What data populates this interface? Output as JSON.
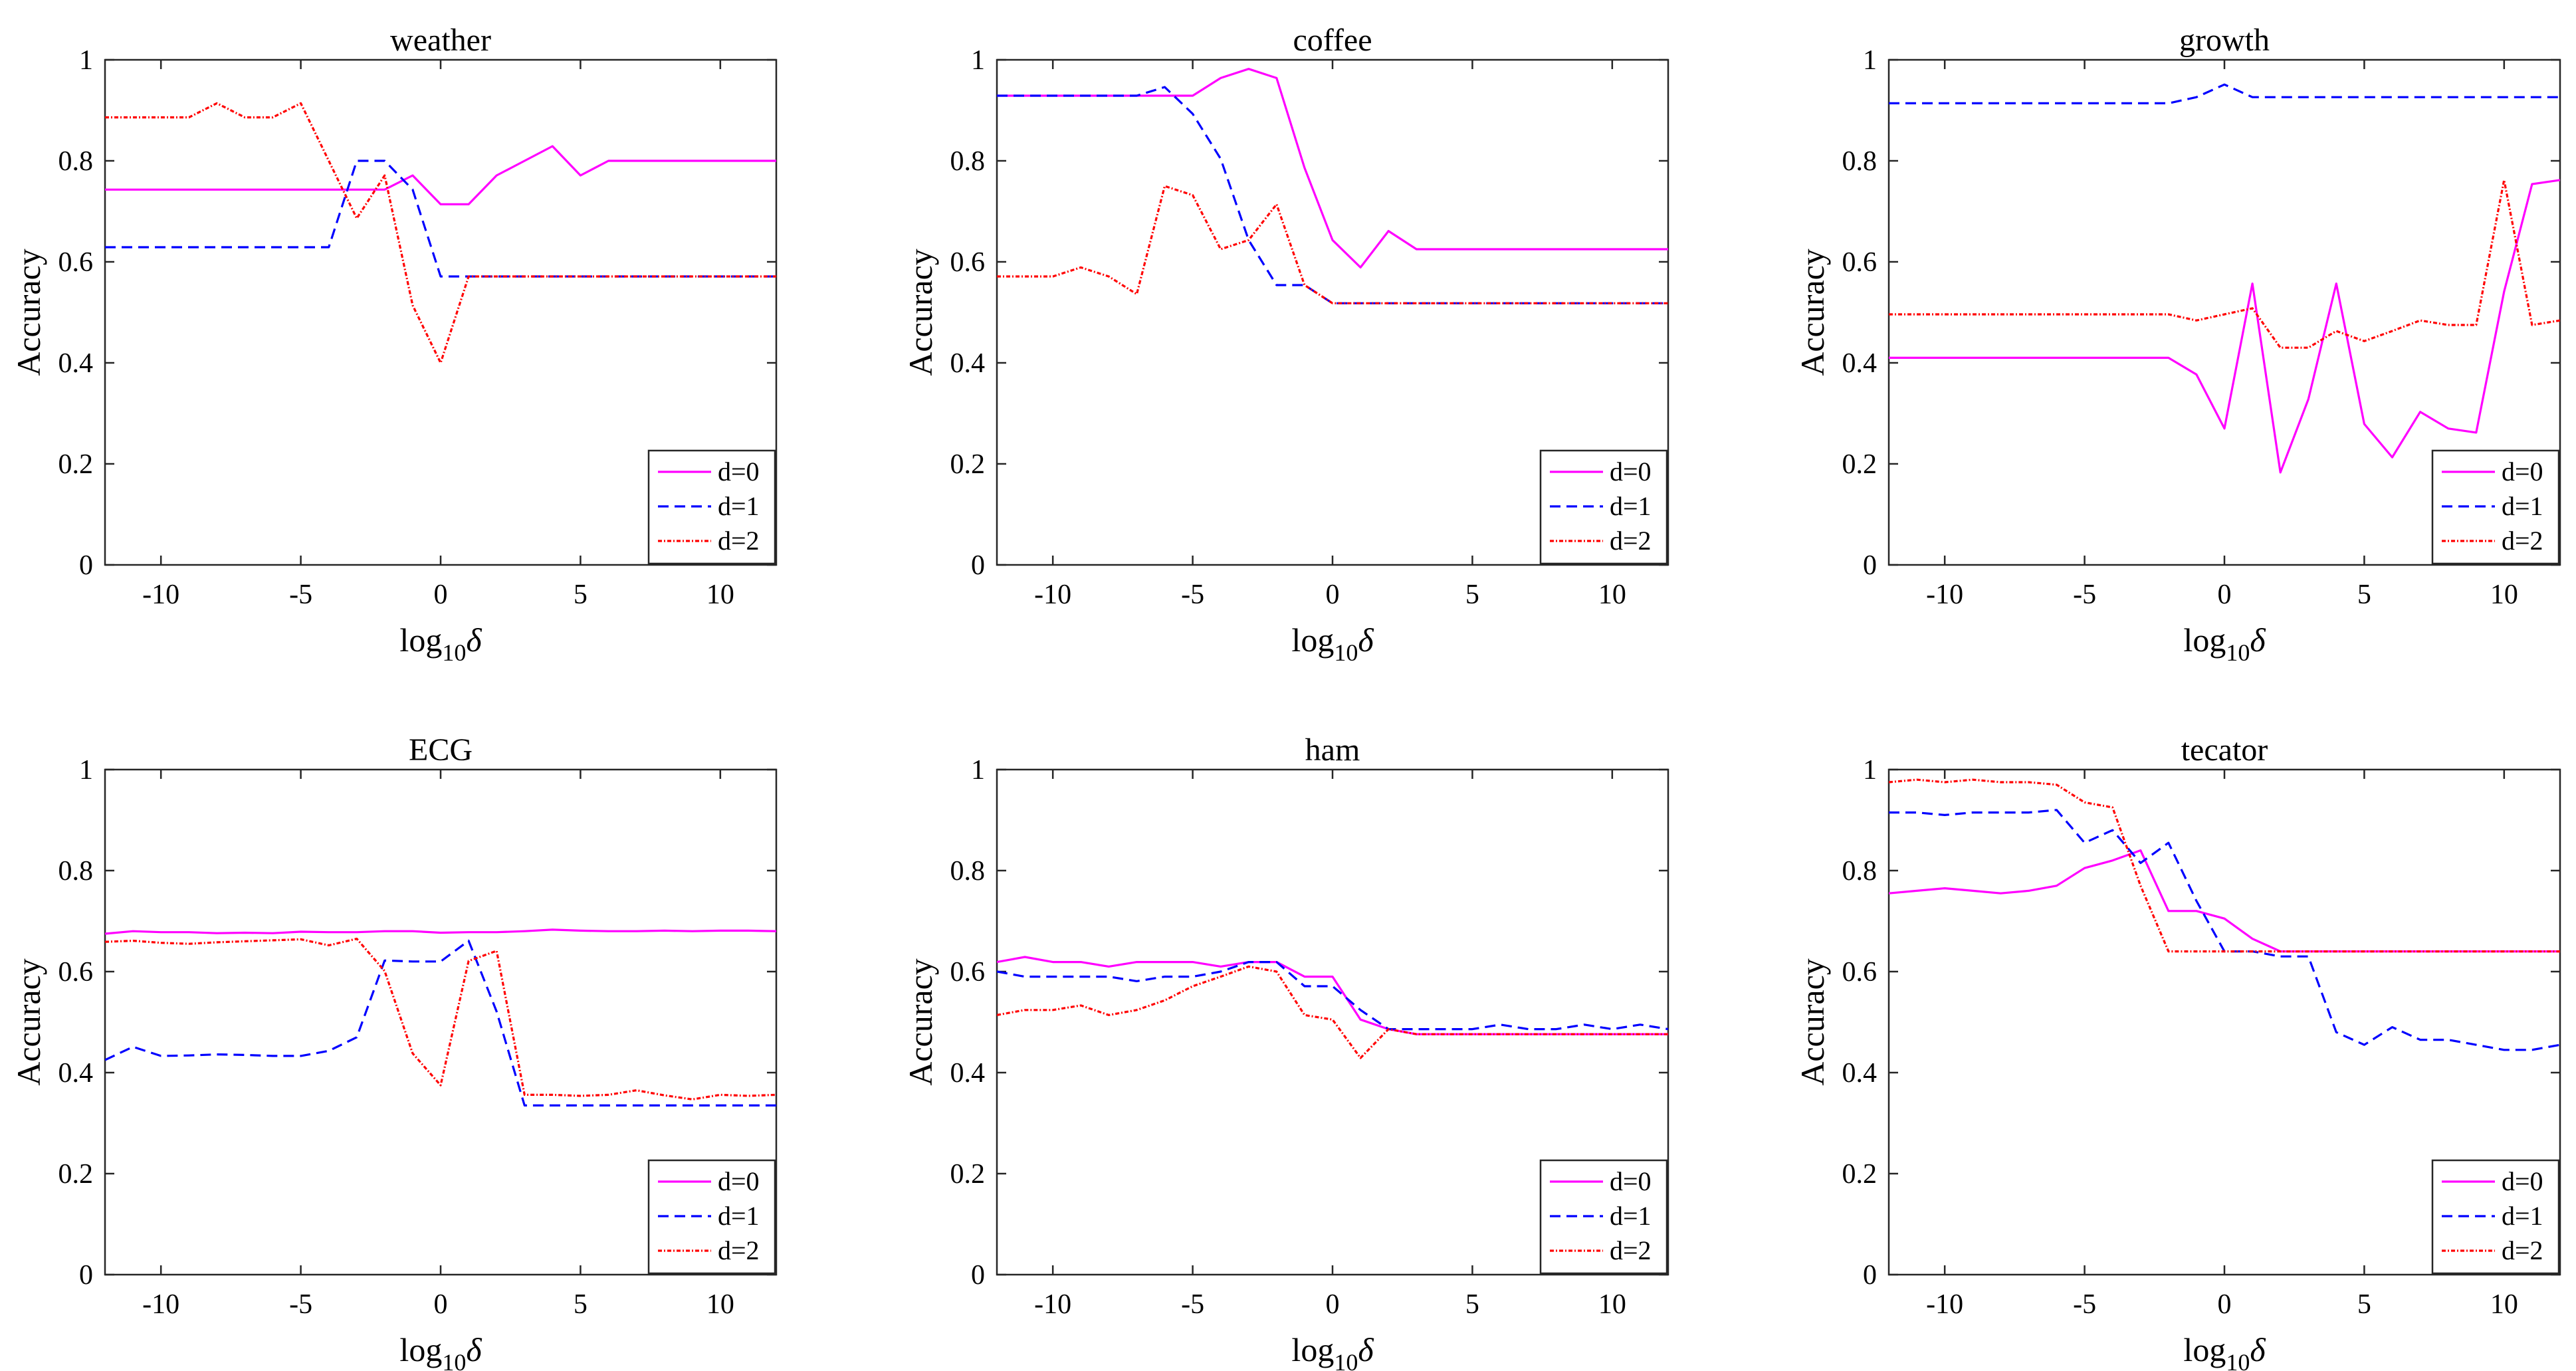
{
  "figure": {
    "ylabel": "Accuracy",
    "xlabel_main": "log",
    "xlabel_sub": "10",
    "xlabel_var": "δ",
    "xticks": [
      -10,
      -5,
      0,
      5,
      10
    ],
    "yticks": [
      0,
      0.2,
      0.4,
      0.6,
      0.8,
      1
    ],
    "xlim": [
      -12,
      12
    ],
    "ylim": [
      0,
      1
    ]
  },
  "legend": [
    "d=0",
    "d=1",
    "d=2"
  ],
  "colors": {
    "d0": "#ff00ff",
    "d1": "#0000ff",
    "d2": "#ff0000"
  },
  "chart_data": [
    {
      "type": "line",
      "title": "weather",
      "x": [
        -12,
        -11,
        -10,
        -9,
        -8,
        -7,
        -6,
        -5,
        -4,
        -3,
        -2,
        -1,
        0,
        1,
        2,
        3,
        4,
        5,
        6,
        7,
        8,
        9,
        10,
        11,
        12
      ],
      "series": [
        {
          "name": "d=0",
          "values": [
            0.743,
            0.743,
            0.743,
            0.743,
            0.743,
            0.743,
            0.743,
            0.743,
            0.743,
            0.743,
            0.743,
            0.771,
            0.714,
            0.714,
            0.771,
            0.8,
            0.829,
            0.771,
            0.8,
            0.8,
            0.8,
            0.8,
            0.8,
            0.8,
            0.8
          ]
        },
        {
          "name": "d=1",
          "values": [
            0.629,
            0.629,
            0.629,
            0.629,
            0.629,
            0.629,
            0.629,
            0.629,
            0.629,
            0.8,
            0.8,
            0.743,
            0.571,
            0.571,
            0.571,
            0.571,
            0.571,
            0.571,
            0.571,
            0.571,
            0.571,
            0.571,
            0.571,
            0.571,
            0.571
          ]
        },
        {
          "name": "d=2",
          "values": [
            0.886,
            0.886,
            0.886,
            0.886,
            0.914,
            0.886,
            0.886,
            0.914,
            0.8,
            0.686,
            0.771,
            0.514,
            0.4,
            0.571,
            0.571,
            0.571,
            0.571,
            0.571,
            0.571,
            0.571,
            0.571,
            0.571,
            0.571,
            0.571,
            0.571
          ]
        }
      ],
      "xlabel": "log10δ",
      "ylabel": "Accuracy",
      "xlim": [
        -12,
        12
      ],
      "ylim": [
        0,
        1
      ]
    },
    {
      "type": "line",
      "title": "coffee",
      "x": [
        -12,
        -11,
        -10,
        -9,
        -8,
        -7,
        -6,
        -5,
        -4,
        -3,
        -2,
        -1,
        0,
        1,
        2,
        3,
        4,
        5,
        6,
        7,
        8,
        9,
        10,
        11,
        12
      ],
      "series": [
        {
          "name": "d=0",
          "values": [
            0.929,
            0.929,
            0.929,
            0.929,
            0.929,
            0.929,
            0.929,
            0.929,
            0.964,
            0.982,
            0.964,
            0.786,
            0.643,
            0.589,
            0.661,
            0.625,
            0.625,
            0.625,
            0.625,
            0.625,
            0.625,
            0.625,
            0.625,
            0.625,
            0.625
          ]
        },
        {
          "name": "d=1",
          "values": [
            0.929,
            0.929,
            0.929,
            0.929,
            0.929,
            0.929,
            0.946,
            0.893,
            0.804,
            0.643,
            0.554,
            0.554,
            0.518,
            0.518,
            0.518,
            0.518,
            0.518,
            0.518,
            0.518,
            0.518,
            0.518,
            0.518,
            0.518,
            0.518,
            0.518
          ]
        },
        {
          "name": "d=2",
          "values": [
            0.571,
            0.571,
            0.571,
            0.589,
            0.571,
            0.536,
            0.75,
            0.732,
            0.625,
            0.643,
            0.714,
            0.554,
            0.518,
            0.518,
            0.518,
            0.518,
            0.518,
            0.518,
            0.518,
            0.518,
            0.518,
            0.518,
            0.518,
            0.518,
            0.518
          ]
        }
      ],
      "xlabel": "log10δ",
      "ylabel": "Accuracy",
      "xlim": [
        -12,
        12
      ],
      "ylim": [
        0,
        1
      ]
    },
    {
      "type": "line",
      "title": "growth",
      "x": [
        -12,
        -11,
        -10,
        -9,
        -8,
        -7,
        -6,
        -5,
        -4,
        -3,
        -2,
        -1,
        0,
        1,
        2,
        3,
        4,
        5,
        6,
        7,
        8,
        9,
        10,
        11,
        12
      ],
      "series": [
        {
          "name": "d=0",
          "values": [
            0.41,
            0.41,
            0.41,
            0.41,
            0.41,
            0.41,
            0.41,
            0.41,
            0.41,
            0.41,
            0.41,
            0.377,
            0.27,
            0.557,
            0.183,
            0.328,
            0.557,
            0.279,
            0.213,
            0.303,
            0.27,
            0.262,
            0.541,
            0.754,
            0.762
          ]
        },
        {
          "name": "d=1",
          "values": [
            0.914,
            0.914,
            0.914,
            0.914,
            0.914,
            0.914,
            0.914,
            0.914,
            0.914,
            0.914,
            0.914,
            0.926,
            0.951,
            0.926,
            0.926,
            0.926,
            0.926,
            0.926,
            0.926,
            0.926,
            0.926,
            0.926,
            0.926,
            0.926,
            0.926
          ]
        },
        {
          "name": "d=2",
          "values": [
            0.496,
            0.496,
            0.496,
            0.496,
            0.496,
            0.496,
            0.496,
            0.496,
            0.496,
            0.496,
            0.496,
            0.484,
            0.496,
            0.508,
            0.43,
            0.43,
            0.463,
            0.443,
            0.463,
            0.484,
            0.475,
            0.475,
            0.762,
            0.475,
            0.484
          ]
        }
      ],
      "xlabel": "log10δ",
      "ylabel": "Accuracy",
      "xlim": [
        -12,
        12
      ],
      "ylim": [
        0,
        1
      ]
    },
    {
      "type": "line",
      "title": "ECG",
      "x": [
        -12,
        -11,
        -10,
        -9,
        -8,
        -7,
        -6,
        -5,
        -4,
        -3,
        -2,
        -1,
        0,
        1,
        2,
        3,
        4,
        5,
        6,
        7,
        8,
        9,
        10,
        11,
        12
      ],
      "series": [
        {
          "name": "d=0",
          "values": [
            0.675,
            0.68,
            0.678,
            0.678,
            0.676,
            0.677,
            0.676,
            0.679,
            0.678,
            0.678,
            0.68,
            0.68,
            0.677,
            0.678,
            0.678,
            0.68,
            0.683,
            0.681,
            0.68,
            0.68,
            0.681,
            0.68,
            0.681,
            0.681,
            0.68
          ]
        },
        {
          "name": "d=1",
          "values": [
            0.425,
            0.451,
            0.433,
            0.434,
            0.436,
            0.435,
            0.433,
            0.433,
            0.443,
            0.47,
            0.622,
            0.62,
            0.62,
            0.661,
            0.521,
            0.335,
            0.335,
            0.335,
            0.335,
            0.335,
            0.335,
            0.335,
            0.335,
            0.335,
            0.335
          ]
        },
        {
          "name": "d=2",
          "values": [
            0.659,
            0.661,
            0.657,
            0.655,
            0.658,
            0.66,
            0.662,
            0.664,
            0.652,
            0.665,
            0.601,
            0.438,
            0.375,
            0.621,
            0.641,
            0.356,
            0.356,
            0.354,
            0.356,
            0.365,
            0.355,
            0.347,
            0.356,
            0.354,
            0.356
          ]
        }
      ],
      "xlabel": "log10δ",
      "ylabel": "Accuracy",
      "xlim": [
        -12,
        12
      ],
      "ylim": [
        0,
        1
      ]
    },
    {
      "type": "line",
      "title": "ham",
      "x": [
        -12,
        -11,
        -10,
        -9,
        -8,
        -7,
        -6,
        -5,
        -4,
        -3,
        -2,
        -1,
        0,
        1,
        2,
        3,
        4,
        5,
        6,
        7,
        8,
        9,
        10,
        11,
        12
      ],
      "series": [
        {
          "name": "d=0",
          "values": [
            0.619,
            0.629,
            0.619,
            0.619,
            0.61,
            0.619,
            0.619,
            0.619,
            0.61,
            0.619,
            0.619,
            0.59,
            0.59,
            0.505,
            0.486,
            0.476,
            0.476,
            0.476,
            0.476,
            0.476,
            0.476,
            0.476,
            0.476,
            0.476,
            0.476
          ]
        },
        {
          "name": "d=1",
          "values": [
            0.6,
            0.59,
            0.59,
            0.59,
            0.59,
            0.581,
            0.59,
            0.59,
            0.6,
            0.619,
            0.619,
            0.571,
            0.571,
            0.524,
            0.486,
            0.486,
            0.486,
            0.486,
            0.495,
            0.486,
            0.486,
            0.495,
            0.486,
            0.495,
            0.486
          ]
        },
        {
          "name": "d=2",
          "values": [
            0.514,
            0.524,
            0.524,
            0.533,
            0.514,
            0.524,
            0.543,
            0.571,
            0.59,
            0.61,
            0.6,
            0.514,
            0.505,
            0.429,
            0.486,
            0.476,
            0.476,
            0.476,
            0.476,
            0.476,
            0.476,
            0.476,
            0.476,
            0.476,
            0.476
          ]
        }
      ],
      "xlabel": "log10δ",
      "ylabel": "Accuracy",
      "xlim": [
        -12,
        12
      ],
      "ylim": [
        0,
        1
      ]
    },
    {
      "type": "line",
      "title": "tecator",
      "x": [
        -12,
        -11,
        -10,
        -9,
        -8,
        -7,
        -6,
        -5,
        -4,
        -3,
        -2,
        -1,
        0,
        1,
        2,
        3,
        4,
        5,
        6,
        7,
        8,
        9,
        10,
        11,
        12
      ],
      "series": [
        {
          "name": "d=0",
          "values": [
            0.755,
            0.76,
            0.765,
            0.76,
            0.755,
            0.76,
            0.77,
            0.805,
            0.82,
            0.84,
            0.72,
            0.72,
            0.705,
            0.665,
            0.64,
            0.64,
            0.64,
            0.64,
            0.64,
            0.64,
            0.64,
            0.64,
            0.64,
            0.64,
            0.64
          ]
        },
        {
          "name": "d=1",
          "values": [
            0.915,
            0.915,
            0.91,
            0.915,
            0.915,
            0.915,
            0.92,
            0.855,
            0.88,
            0.815,
            0.855,
            0.74,
            0.64,
            0.64,
            0.63,
            0.63,
            0.48,
            0.455,
            0.49,
            0.465,
            0.465,
            0.455,
            0.445,
            0.445,
            0.455
          ]
        },
        {
          "name": "d=2",
          "values": [
            0.975,
            0.98,
            0.975,
            0.98,
            0.975,
            0.975,
            0.97,
            0.935,
            0.925,
            0.77,
            0.64,
            0.64,
            0.64,
            0.64,
            0.64,
            0.64,
            0.64,
            0.64,
            0.64,
            0.64,
            0.64,
            0.64,
            0.64,
            0.64,
            0.64
          ]
        }
      ],
      "xlabel": "log10δ",
      "ylabel": "Accuracy",
      "xlim": [
        -12,
        12
      ],
      "ylim": [
        0,
        1
      ]
    }
  ]
}
